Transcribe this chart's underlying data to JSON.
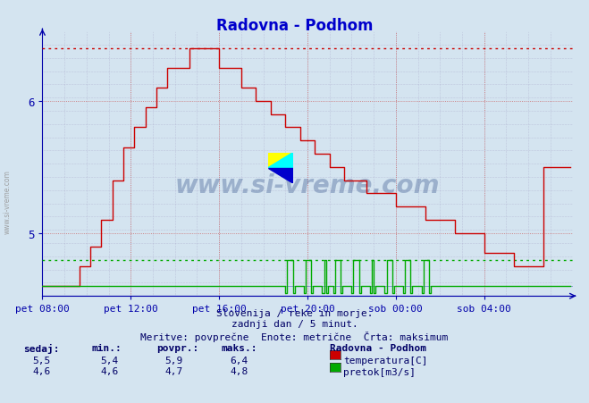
{
  "title": "Radovna - Podhom",
  "title_color": "#0000cc",
  "bg_color": "#d4e4f0",
  "plot_bg_color": "#d4e4f0",
  "xlabel_ticks": [
    "pet 08:00",
    "pet 12:00",
    "pet 16:00",
    "pet 20:00",
    "sob 00:00",
    "sob 04:00"
  ],
  "temp_color": "#cc0000",
  "flow_color": "#00aa00",
  "grid_color": "#aaaacc",
  "grid_color_red": "#cc8888",
  "temp_max": 6.4,
  "flow_max": 4.8,
  "flow_base": 4.6,
  "footer_lines": [
    "Slovenija / reke in morje.",
    "zadnji dan / 5 minut.",
    "Meritve: povprečne  Enote: metrične  Črta: maksimum"
  ],
  "legend_title": "Radovna - Podhom",
  "legend_temp_label": "temperatura[C]",
  "legend_flow_label": "pretok[m3/s]",
  "table_headers": [
    "sedaj:",
    "min.:",
    "povpr.:",
    "maks.:"
  ],
  "table_temp": [
    "5,5",
    "5,4",
    "5,9",
    "6,4"
  ],
  "table_flow": [
    "4,6",
    "4,6",
    "4,7",
    "4,8"
  ],
  "watermark": "www.si-vreme.com",
  "ymin": 4.525,
  "ymax": 6.525,
  "n_points": 288,
  "axis_color": "#0000aa",
  "tick_label_color": "#000066"
}
